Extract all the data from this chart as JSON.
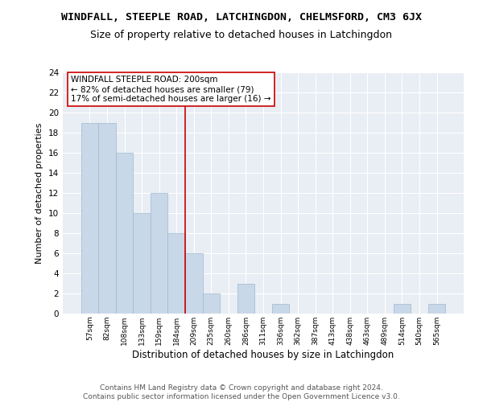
{
  "title": "WINDFALL, STEEPLE ROAD, LATCHINGDON, CHELMSFORD, CM3 6JX",
  "subtitle": "Size of property relative to detached houses in Latchingdon",
  "xlabel": "Distribution of detached houses by size in Latchingdon",
  "ylabel": "Number of detached properties",
  "categories": [
    "57sqm",
    "82sqm",
    "108sqm",
    "133sqm",
    "159sqm",
    "184sqm",
    "209sqm",
    "235sqm",
    "260sqm",
    "286sqm",
    "311sqm",
    "336sqm",
    "362sqm",
    "387sqm",
    "413sqm",
    "438sqm",
    "463sqm",
    "489sqm",
    "514sqm",
    "540sqm",
    "565sqm"
  ],
  "values": [
    19,
    19,
    16,
    10,
    12,
    8,
    6,
    2,
    0,
    3,
    0,
    1,
    0,
    0,
    0,
    0,
    0,
    0,
    1,
    0,
    1
  ],
  "bar_color": "#c8d8e8",
  "bar_edge_color": "#a0b8d0",
  "vline_x_index": 5.5,
  "vline_color": "#cc0000",
  "annotation_text": "WINDFALL STEEPLE ROAD: 200sqm\n← 82% of detached houses are smaller (79)\n17% of semi-detached houses are larger (16) →",
  "annotation_box_color": "white",
  "annotation_box_edge": "#cc0000",
  "ylim": [
    0,
    24
  ],
  "yticks": [
    0,
    2,
    4,
    6,
    8,
    10,
    12,
    14,
    16,
    18,
    20,
    22,
    24
  ],
  "background_color": "#e8eef4",
  "grid_color": "white",
  "footer": "Contains HM Land Registry data © Crown copyright and database right 2024.\nContains public sector information licensed under the Open Government Licence v3.0.",
  "title_fontsize": 9.5,
  "subtitle_fontsize": 9,
  "xlabel_fontsize": 8.5,
  "ylabel_fontsize": 8,
  "annotation_fontsize": 7.5,
  "footer_fontsize": 6.5
}
